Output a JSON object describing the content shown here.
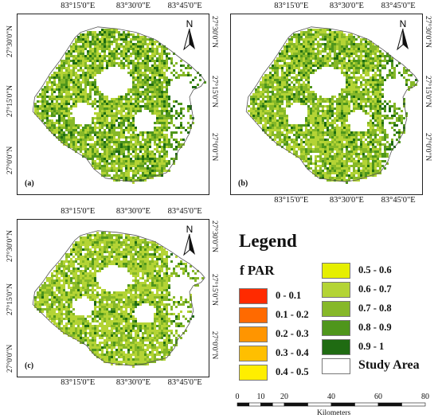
{
  "panels": [
    {
      "label": "(a)",
      "top_ticks": [
        "83°15'0\"E",
        "83°30'0\"E",
        "83°45'0\"E"
      ],
      "bottom_ticks": [],
      "left_ticks": [
        "27°30'0\"N",
        "27°15'0\"N",
        "27°0'0\"N"
      ],
      "right_ticks": [
        "27°30'0\"N",
        "27°15'0\"N",
        "27°0'0\"N"
      ]
    },
    {
      "label": "(b)",
      "top_ticks": [
        "83°15'0\"E",
        "83°30'0\"E",
        "83°45'0\"E"
      ],
      "bottom_ticks": [
        "83°15'0\"E",
        "83°30'0\"E",
        "83°45'0\"E"
      ],
      "left_ticks": [],
      "right_ticks": [
        "27°30'0\"N",
        "27°15'0\"N",
        "27°0'0\"N"
      ]
    },
    {
      "label": "(c)",
      "top_ticks": [
        "83°15'0\"E",
        "83°30'0\"E",
        "83°45'0\"E"
      ],
      "bottom_ticks": [
        "83°15'0\"E",
        "83°30'0\"E",
        "83°45'0\"E"
      ],
      "left_ticks": [
        "27°30'0\"N",
        "27°15'0\"N",
        "27°0'0\"N"
      ],
      "right_ticks": [
        "27°30'0\"N",
        "27°15'0\"N",
        "27°0'0\"N"
      ]
    }
  ],
  "north_label": "N",
  "legend": {
    "title": "Legend",
    "subtitle": "f PAR",
    "classes": [
      {
        "label": "0 - 0.1",
        "color": "#ff2a00"
      },
      {
        "label": "0.1 - 0.2",
        "color": "#ff6a00"
      },
      {
        "label": "0.2 - 0.3",
        "color": "#ff9500"
      },
      {
        "label": "0.3 - 0.4",
        "color": "#ffbf00"
      },
      {
        "label": "0.4 - 0.5",
        "color": "#ffee00"
      },
      {
        "label": "0.5 - 0.6",
        "color": "#e6ef00"
      },
      {
        "label": "0.6 - 0.7",
        "color": "#b4d435"
      },
      {
        "label": "0.7 - 0.8",
        "color": "#86b828"
      },
      {
        "label": "0.8 - 0.9",
        "color": "#4f961c"
      },
      {
        "label": "0.9 - 1",
        "color": "#1f6b12"
      }
    ],
    "study_area": {
      "label": "Study Area",
      "color": "#ffffff"
    }
  },
  "scale_bar": {
    "ticks": [
      "0",
      "10",
      "20",
      "40",
      "60",
      "80"
    ],
    "unit": "Kilometers"
  },
  "colors": {
    "veg_light": "#b4d435",
    "veg_mid": "#86b828",
    "veg_dark": "#4f961c",
    "veg_darkest": "#1f6b12"
  }
}
